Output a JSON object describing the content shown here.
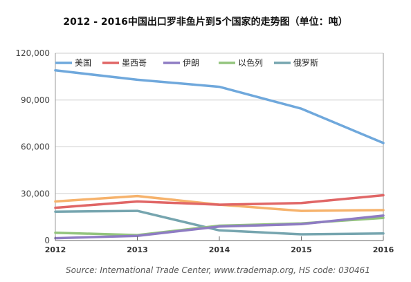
{
  "chart_data": {
    "type": "line",
    "title": "2012 - 2016中国出口罗非鱼片到5个国家的走势图（单位：吨）",
    "source": "Source: International Trade Center, www.trademap.org, HS code: 030461",
    "x": [
      "2012",
      "2013",
      "2014",
      "2015",
      "2016"
    ],
    "ylim": [
      0,
      120000
    ],
    "yticks": [
      "0",
      "30,000",
      "60,000",
      "90,000",
      "120,000"
    ],
    "ytick_values": [
      0,
      30000,
      60000,
      90000,
      120000
    ],
    "grid": true,
    "legend_position": "top",
    "series": [
      {
        "name": "美国",
        "color": "#6fa8dc",
        "values": [
          109000,
          103000,
          98500,
          84500,
          62500
        ]
      },
      {
        "name": "墨西哥",
        "color": "#e06666",
        "values": [
          21000,
          25000,
          23000,
          24000,
          29000
        ]
      },
      {
        "name": "伊朗",
        "color": "#8e7cc3",
        "values": [
          1500,
          3000,
          9000,
          10500,
          16000
        ]
      },
      {
        "name": "以色列",
        "color": "#93c47d",
        "values": [
          5000,
          3500,
          9500,
          11000,
          14500
        ]
      },
      {
        "name": "俄罗斯",
        "color": "#76a5af",
        "values": [
          18500,
          19000,
          6500,
          4000,
          4500
        ]
      },
      {
        "name": "",
        "color": "#f6b26b",
        "values": [
          25000,
          28500,
          23000,
          19000,
          19500
        ]
      }
    ]
  }
}
